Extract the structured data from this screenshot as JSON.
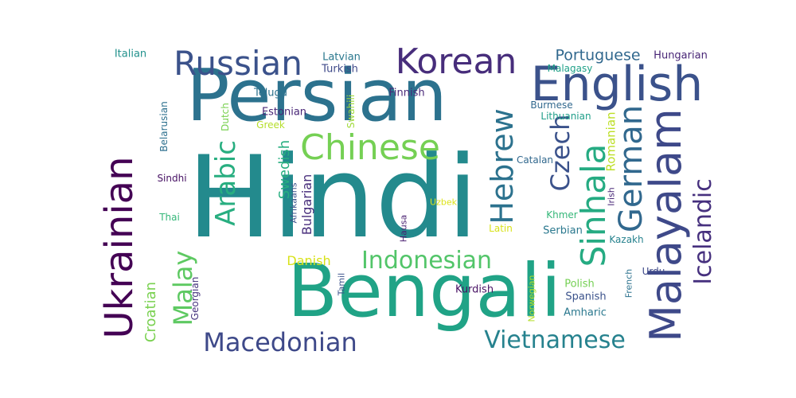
{
  "words": [
    {
      "text": "Hindi",
      "color": "#238a8d",
      "vertical": false
    },
    {
      "text": "Persian",
      "color": "#2c728e",
      "vertical": false
    },
    {
      "text": "Bengali",
      "color": "#20a386",
      "vertical": false
    },
    {
      "text": "English",
      "color": "#3b528b",
      "vertical": false
    },
    {
      "text": "Korean",
      "color": "#472d7b",
      "vertical": false
    },
    {
      "text": "Russian",
      "color": "#3b528b",
      "vertical": false
    },
    {
      "text": "Chinese",
      "color": "#75d054",
      "vertical": false
    },
    {
      "text": "Ukrainian",
      "color": "#440154",
      "vertical": true
    },
    {
      "text": "Malayalam",
      "color": "#3e4989",
      "vertical": true
    },
    {
      "text": "Sinhala",
      "color": "#25ab82",
      "vertical": true
    },
    {
      "text": "Hebrew",
      "color": "#2c728e",
      "vertical": true
    },
    {
      "text": "German",
      "color": "#31688e",
      "vertical": true
    },
    {
      "text": "Czech",
      "color": "#3b528b",
      "vertical": true
    },
    {
      "text": "Arabic",
      "color": "#28ae80",
      "vertical": true
    },
    {
      "text": "Malay",
      "color": "#5ec962",
      "vertical": true
    },
    {
      "text": "Icelandic",
      "color": "#46307e",
      "vertical": true
    },
    {
      "text": "Indonesian",
      "color": "#52c569",
      "vertical": false
    },
    {
      "text": "Macedonian",
      "color": "#3e4989",
      "vertical": false
    },
    {
      "text": "Vietnamese",
      "color": "#26828e",
      "vertical": false
    },
    {
      "text": "Portuguese",
      "color": "#31688e",
      "vertical": false
    },
    {
      "text": "Croatian",
      "color": "#7ad151",
      "vertical": true
    },
    {
      "text": "Swedish",
      "color": "#28ae80",
      "vertical": true
    },
    {
      "text": "Bulgarian",
      "color": "#472d7b",
      "vertical": true
    },
    {
      "text": "Romanian",
      "color": "#bddf26",
      "vertical": true
    },
    {
      "text": "Danish",
      "color": "#d8e219",
      "vertical": false
    },
    {
      "text": "Italian",
      "color": "#21918c",
      "vertical": false
    },
    {
      "text": "Latvian",
      "color": "#2a788e",
      "vertical": false
    },
    {
      "text": "Turkish",
      "color": "#3e4989",
      "vertical": false
    },
    {
      "text": "Malagasy",
      "color": "#1fa188",
      "vertical": false
    },
    {
      "text": "Hungarian",
      "color": "#482576",
      "vertical": false
    },
    {
      "text": "Belarusian",
      "color": "#2d708e",
      "vertical": true
    },
    {
      "text": "Telugu",
      "color": "#2c728e",
      "vertical": false
    },
    {
      "text": "Dutch",
      "color": "#7ad151",
      "vertical": true
    },
    {
      "text": "Finnish",
      "color": "#482878",
      "vertical": false
    },
    {
      "text": "Burmese",
      "color": "#31688e",
      "vertical": false
    },
    {
      "text": "Estonian",
      "color": "#482576",
      "vertical": false
    },
    {
      "text": "Swahili",
      "color": "#a0da39",
      "vertical": true
    },
    {
      "text": "Greek",
      "color": "#b5de2b",
      "vertical": false
    },
    {
      "text": "Lithuanian",
      "color": "#1f9e89",
      "vertical": false
    },
    {
      "text": "Catalan",
      "color": "#31688e",
      "vertical": false
    },
    {
      "text": "Sindhi",
      "color": "#471164",
      "vertical": false
    },
    {
      "text": "Afrikaans",
      "color": "#3b528b",
      "vertical": true
    },
    {
      "text": "Uzbek",
      "color": "#dde318",
      "vertical": false
    },
    {
      "text": "Irish",
      "color": "#482878",
      "vertical": true
    },
    {
      "text": "Khmer",
      "color": "#35b779",
      "vertical": false
    },
    {
      "text": "Thai",
      "color": "#35b779",
      "vertical": false
    },
    {
      "text": "Hausa",
      "color": "#481f70",
      "vertical": true
    },
    {
      "text": "Latin",
      "color": "#d8e219",
      "vertical": false
    },
    {
      "text": "Serbian",
      "color": "#2a788e",
      "vertical": false
    },
    {
      "text": "Kazakh",
      "color": "#26828e",
      "vertical": false
    },
    {
      "text": "Georgian",
      "color": "#46337e",
      "vertical": true
    },
    {
      "text": "Tamil",
      "color": "#3b528b",
      "vertical": true
    },
    {
      "text": "Norwegian",
      "color": "#b5de2b",
      "vertical": true
    },
    {
      "text": "French",
      "color": "#2c728e",
      "vertical": true
    },
    {
      "text": "Urdu",
      "color": "#3e4989",
      "vertical": false
    },
    {
      "text": "Kurdish",
      "color": "#471164",
      "vertical": false
    },
    {
      "text": "Polish",
      "color": "#75d054",
      "vertical": false
    },
    {
      "text": "Spanish",
      "color": "#3b528b",
      "vertical": false
    },
    {
      "text": "Amharic",
      "color": "#2a788e",
      "vertical": false
    }
  ]
}
